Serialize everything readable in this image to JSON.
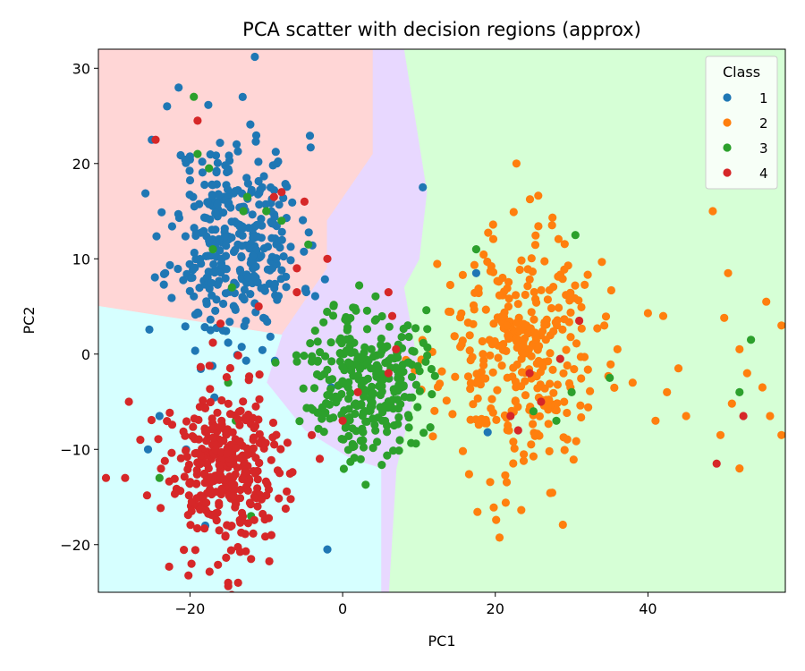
{
  "chart_data": {
    "type": "scatter",
    "title": "PCA scatter with decision regions (approx)",
    "xlabel": "PC1",
    "ylabel": "PC2",
    "xlim": [
      -32,
      58
    ],
    "ylim": [
      -25,
      32
    ],
    "xticks": [
      -20,
      0,
      20,
      40
    ],
    "yticks": [
      -20,
      -10,
      0,
      10,
      20,
      30
    ],
    "xtick_labels": [
      "−20",
      "0",
      "20",
      "40"
    ],
    "ytick_labels": [
      "−20",
      "−10",
      "0",
      "10",
      "20",
      "30"
    ],
    "legend": {
      "title": "Class",
      "position": "top-right"
    },
    "regions": [
      {
        "class": "1",
        "color": "#ffd6d6",
        "boundary": [
          [
            -32,
            32
          ],
          [
            4,
            32
          ],
          [
            4,
            21
          ],
          [
            -2,
            14
          ],
          [
            -2,
            9
          ],
          [
            -8,
            2
          ],
          [
            -32,
            5
          ]
        ]
      },
      {
        "class": "2",
        "color": "#d6ffd6",
        "boundary": [
          [
            8,
            32
          ],
          [
            58,
            32
          ],
          [
            58,
            -25
          ],
          [
            6,
            -25
          ],
          [
            7,
            -12
          ],
          [
            10,
            -2
          ],
          [
            8,
            7
          ],
          [
            10,
            10
          ],
          [
            11,
            17
          ]
        ]
      },
      {
        "class": "3",
        "color": "#e8d8ff",
        "boundary": [
          [
            4,
            32
          ],
          [
            8,
            32
          ],
          [
            11,
            17
          ],
          [
            10,
            10
          ],
          [
            8,
            7
          ],
          [
            10,
            -2
          ],
          [
            7,
            -12
          ],
          [
            6,
            -25
          ],
          [
            5,
            -25
          ],
          [
            5,
            -12
          ],
          [
            1,
            -11
          ],
          [
            -5,
            -8
          ],
          [
            -10,
            -3
          ],
          [
            -8,
            2
          ],
          [
            -2,
            9
          ],
          [
            -2,
            14
          ],
          [
            4,
            21
          ]
        ]
      },
      {
        "class": "4",
        "color": "#d6ffff",
        "boundary": [
          [
            -32,
            5
          ],
          [
            -8,
            2
          ],
          [
            -10,
            -3
          ],
          [
            -5,
            -8
          ],
          [
            1,
            -11
          ],
          [
            5,
            -12
          ],
          [
            5,
            -25
          ],
          [
            -32,
            -25
          ]
        ]
      }
    ],
    "series": [
      {
        "name": "1",
        "color": "#1f77b4",
        "center": [
          -14,
          12
        ],
        "spread": [
          4.2,
          5.5
        ],
        "count": 340,
        "seed": 11,
        "outliers": [
          [
            -11.5,
            31.2
          ],
          [
            10.5,
            17.5
          ],
          [
            17.5,
            8.5
          ],
          [
            -1.5,
            -3.5
          ],
          [
            19,
            -8.2
          ],
          [
            -24,
            -6.5
          ],
          [
            -20.5,
            -10
          ],
          [
            -25.5,
            -10
          ],
          [
            -2,
            -20.5
          ],
          [
            -18,
            -18
          ],
          [
            -15,
            1.2
          ],
          [
            -23,
            26
          ],
          [
            -25,
            22.5
          ]
        ]
      },
      {
        "name": "2",
        "color": "#ff7f0e",
        "center": [
          23,
          0
        ],
        "spread": [
          5,
          6.5
        ],
        "count": 330,
        "seed": 23,
        "outliers": [
          [
            48.5,
            15
          ],
          [
            50.5,
            8.5
          ],
          [
            55.5,
            5.5
          ],
          [
            57.5,
            3
          ],
          [
            40,
            4.3
          ],
          [
            42,
            4
          ],
          [
            45,
            -6.5
          ],
          [
            49.5,
            -8.5
          ],
          [
            52,
            -12
          ],
          [
            57.5,
            -8.5
          ],
          [
            55,
            -3.5
          ],
          [
            56,
            -6.5
          ],
          [
            52,
            0.5
          ],
          [
            53,
            -2
          ],
          [
            50,
            3.8
          ],
          [
            51,
            -5.2
          ],
          [
            42.5,
            -4
          ],
          [
            38,
            -3
          ],
          [
            41,
            -7
          ],
          [
            36,
            0.5
          ],
          [
            44,
            -1.5
          ]
        ]
      },
      {
        "name": "3",
        "color": "#2ca02c",
        "center": [
          3,
          -2.5
        ],
        "spread": [
          3.8,
          4
        ],
        "count": 300,
        "seed": 37,
        "outliers": [
          [
            -19.5,
            27
          ],
          [
            -19,
            21
          ],
          [
            -17.5,
            19.5
          ],
          [
            -12.5,
            16.5
          ],
          [
            -10,
            15
          ],
          [
            -8,
            14
          ],
          [
            -4.5,
            11.5
          ],
          [
            -14.5,
            7
          ],
          [
            -13,
            15
          ],
          [
            -17,
            11
          ],
          [
            17.5,
            11
          ],
          [
            30.5,
            12.5
          ],
          [
            25,
            -6
          ],
          [
            28,
            -7
          ],
          [
            30,
            -4
          ],
          [
            53.5,
            1.5
          ],
          [
            52,
            -4
          ],
          [
            35,
            -2.5
          ],
          [
            -24,
            -13
          ],
          [
            -12,
            -17
          ],
          [
            -14,
            -7
          ],
          [
            -15,
            -3
          ]
        ]
      },
      {
        "name": "4",
        "color": "#d62728",
        "center": [
          -15,
          -12.5
        ],
        "spread": [
          4,
          4.5
        ],
        "count": 330,
        "seed": 53,
        "outliers": [
          [
            -24.5,
            22.5
          ],
          [
            -19,
            24.5
          ],
          [
            -9,
            16.5
          ],
          [
            -8,
            17
          ],
          [
            -5,
            16
          ],
          [
            -6,
            9
          ],
          [
            -6,
            6.5
          ],
          [
            -11,
            5
          ],
          [
            -16,
            3.2
          ],
          [
            -17,
            1.2
          ],
          [
            -15,
            -24
          ],
          [
            -2,
            10
          ],
          [
            6,
            6.5
          ],
          [
            6.5,
            4
          ],
          [
            7,
            0.5
          ],
          [
            6,
            -2
          ],
          [
            2,
            -4
          ],
          [
            -3,
            -11
          ],
          [
            0,
            -7
          ],
          [
            -31,
            -13
          ],
          [
            -28,
            -5
          ],
          [
            -28.5,
            -13
          ],
          [
            -26.5,
            -9
          ],
          [
            31,
            3.5
          ],
          [
            26,
            -5
          ],
          [
            23,
            -8
          ],
          [
            28.5,
            -0.5
          ],
          [
            52.5,
            -6.5
          ],
          [
            49,
            -11.5
          ],
          [
            24.5,
            -2
          ],
          [
            22,
            -6.5
          ]
        ]
      }
    ]
  }
}
